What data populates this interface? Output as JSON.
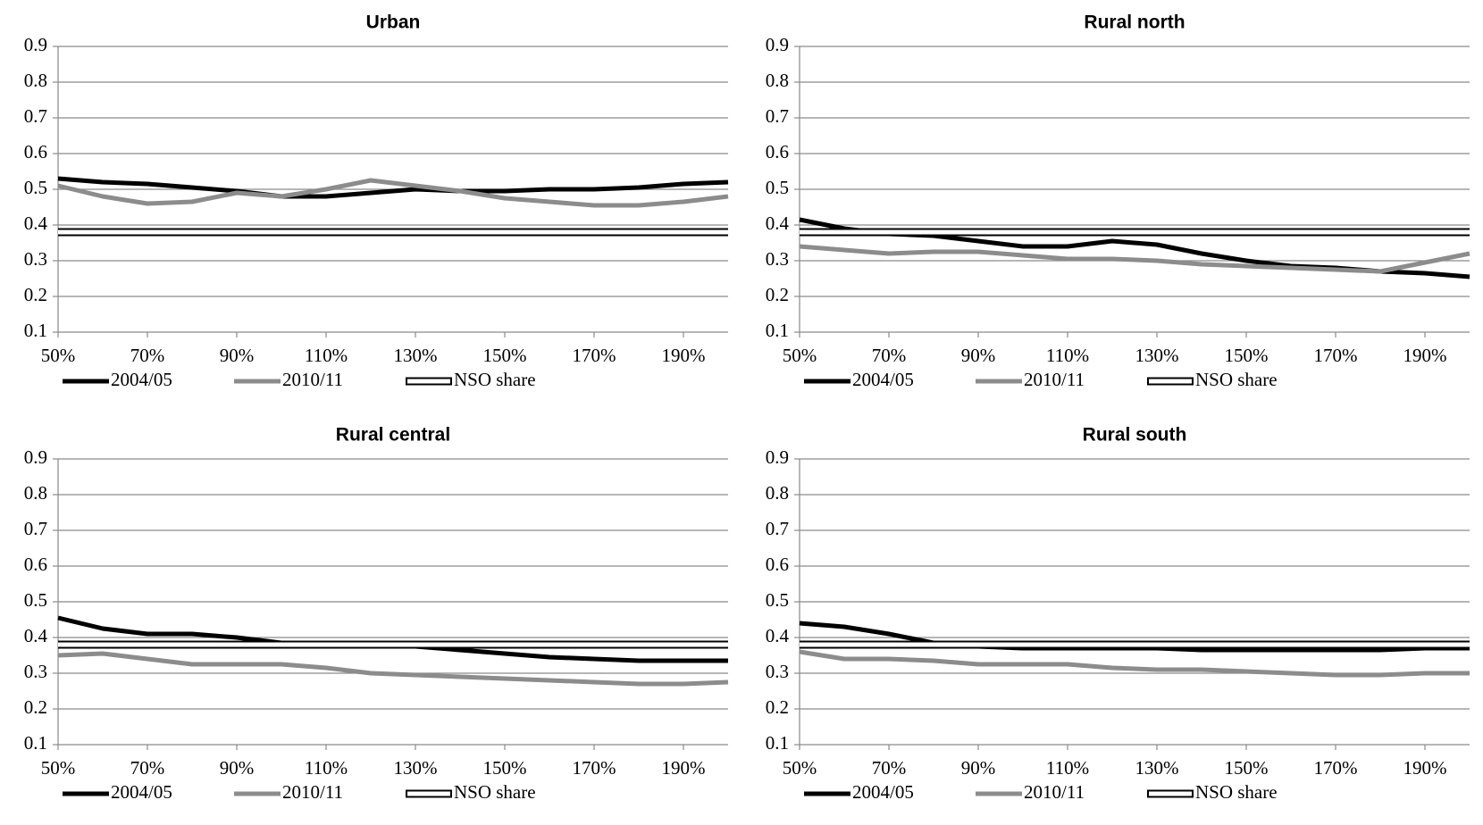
{
  "chart_data": [
    {
      "type": "line",
      "title": "Urban",
      "x": [
        50,
        60,
        70,
        80,
        90,
        100,
        110,
        120,
        130,
        140,
        150,
        160,
        170,
        180,
        190,
        200
      ],
      "series": [
        {
          "name": "2004/05",
          "color": "#000000",
          "values": [
            0.53,
            0.52,
            0.515,
            0.505,
            0.495,
            0.48,
            0.48,
            0.49,
            0.5,
            0.495,
            0.495,
            0.5,
            0.5,
            0.505,
            0.515,
            0.52
          ]
        },
        {
          "name": "2010/11",
          "color": "#8c8c8c",
          "values": [
            0.51,
            0.48,
            0.46,
            0.465,
            0.49,
            0.48,
            0.5,
            0.525,
            0.51,
            0.495,
            0.475,
            0.465,
            0.455,
            0.455,
            0.465,
            0.48
          ]
        },
        {
          "name": "NSO share",
          "color": "#000000",
          "style": "hollow",
          "values": [
            0.38,
            0.38,
            0.38,
            0.38,
            0.38,
            0.38,
            0.38,
            0.38,
            0.38,
            0.38,
            0.38,
            0.38,
            0.38,
            0.38,
            0.38,
            0.38
          ]
        }
      ],
      "xlim": [
        50,
        200
      ],
      "xticks": [
        {
          "value": 50,
          "label": "50%"
        },
        {
          "value": 70,
          "label": "70%"
        },
        {
          "value": 90,
          "label": "90%"
        },
        {
          "value": 110,
          "label": "110%"
        },
        {
          "value": 130,
          "label": "130%"
        },
        {
          "value": 150,
          "label": "150%"
        },
        {
          "value": 170,
          "label": "170%"
        },
        {
          "value": 190,
          "label": "190%"
        }
      ],
      "ylim": [
        0.1,
        0.9
      ],
      "yticks": [
        0.1,
        0.2,
        0.3,
        0.4,
        0.5,
        0.6,
        0.7,
        0.8,
        0.9
      ],
      "grid": true,
      "legend": "bottom"
    },
    {
      "type": "line",
      "title": "Rural north",
      "x": [
        50,
        60,
        70,
        80,
        90,
        100,
        110,
        120,
        130,
        140,
        150,
        160,
        170,
        180,
        190,
        200
      ],
      "series": [
        {
          "name": "2004/05",
          "color": "#000000",
          "values": [
            0.415,
            0.39,
            0.375,
            0.37,
            0.355,
            0.34,
            0.34,
            0.355,
            0.345,
            0.32,
            0.3,
            0.285,
            0.28,
            0.27,
            0.265,
            0.255
          ]
        },
        {
          "name": "2010/11",
          "color": "#8c8c8c",
          "values": [
            0.34,
            0.33,
            0.32,
            0.325,
            0.325,
            0.315,
            0.305,
            0.305,
            0.3,
            0.29,
            0.285,
            0.28,
            0.275,
            0.27,
            0.295,
            0.32
          ]
        },
        {
          "name": "NSO share",
          "color": "#000000",
          "style": "hollow",
          "values": [
            0.38,
            0.38,
            0.38,
            0.38,
            0.38,
            0.38,
            0.38,
            0.38,
            0.38,
            0.38,
            0.38,
            0.38,
            0.38,
            0.38,
            0.38,
            0.38
          ]
        }
      ],
      "xlim": [
        50,
        200
      ],
      "xticks": [
        {
          "value": 50,
          "label": "50%"
        },
        {
          "value": 70,
          "label": "70%"
        },
        {
          "value": 90,
          "label": "90%"
        },
        {
          "value": 110,
          "label": "110%"
        },
        {
          "value": 130,
          "label": "130%"
        },
        {
          "value": 150,
          "label": "150%"
        },
        {
          "value": 170,
          "label": "170%"
        },
        {
          "value": 190,
          "label": "190%"
        }
      ],
      "ylim": [
        0.1,
        0.9
      ],
      "yticks": [
        0.1,
        0.2,
        0.3,
        0.4,
        0.5,
        0.6,
        0.7,
        0.8,
        0.9
      ],
      "grid": true,
      "legend": "bottom"
    },
    {
      "type": "line",
      "title": "Rural central",
      "x": [
        50,
        60,
        70,
        80,
        90,
        100,
        110,
        120,
        130,
        140,
        150,
        160,
        170,
        180,
        190,
        200
      ],
      "series": [
        {
          "name": "2004/05",
          "color": "#000000",
          "values": [
            0.455,
            0.425,
            0.41,
            0.41,
            0.4,
            0.385,
            0.375,
            0.375,
            0.375,
            0.365,
            0.355,
            0.345,
            0.34,
            0.335,
            0.335,
            0.335
          ]
        },
        {
          "name": "2010/11",
          "color": "#8c8c8c",
          "values": [
            0.35,
            0.355,
            0.34,
            0.325,
            0.325,
            0.325,
            0.315,
            0.3,
            0.295,
            0.29,
            0.285,
            0.28,
            0.275,
            0.27,
            0.27,
            0.275
          ]
        },
        {
          "name": "NSO share",
          "color": "#000000",
          "style": "hollow",
          "values": [
            0.38,
            0.38,
            0.38,
            0.38,
            0.38,
            0.38,
            0.38,
            0.38,
            0.38,
            0.38,
            0.38,
            0.38,
            0.38,
            0.38,
            0.38,
            0.38
          ]
        }
      ],
      "xlim": [
        50,
        200
      ],
      "xticks": [
        {
          "value": 50,
          "label": "50%"
        },
        {
          "value": 70,
          "label": "70%"
        },
        {
          "value": 90,
          "label": "90%"
        },
        {
          "value": 110,
          "label": "110%"
        },
        {
          "value": 130,
          "label": "130%"
        },
        {
          "value": 150,
          "label": "150%"
        },
        {
          "value": 170,
          "label": "170%"
        },
        {
          "value": 190,
          "label": "190%"
        }
      ],
      "ylim": [
        0.1,
        0.9
      ],
      "yticks": [
        0.1,
        0.2,
        0.3,
        0.4,
        0.5,
        0.6,
        0.7,
        0.8,
        0.9
      ],
      "grid": true,
      "legend": "bottom"
    },
    {
      "type": "line",
      "title": "Rural south",
      "x": [
        50,
        60,
        70,
        80,
        90,
        100,
        110,
        120,
        130,
        140,
        150,
        160,
        170,
        180,
        190,
        200
      ],
      "series": [
        {
          "name": "2004/05",
          "color": "#000000",
          "values": [
            0.44,
            0.43,
            0.41,
            0.385,
            0.375,
            0.37,
            0.37,
            0.37,
            0.37,
            0.365,
            0.365,
            0.365,
            0.365,
            0.365,
            0.37,
            0.37
          ]
        },
        {
          "name": "2010/11",
          "color": "#8c8c8c",
          "values": [
            0.36,
            0.34,
            0.34,
            0.335,
            0.325,
            0.325,
            0.325,
            0.315,
            0.31,
            0.31,
            0.305,
            0.3,
            0.295,
            0.295,
            0.3,
            0.3
          ]
        },
        {
          "name": "NSO share",
          "color": "#000000",
          "style": "hollow",
          "values": [
            0.38,
            0.38,
            0.38,
            0.38,
            0.38,
            0.38,
            0.38,
            0.38,
            0.38,
            0.38,
            0.38,
            0.38,
            0.38,
            0.38,
            0.38,
            0.38
          ]
        }
      ],
      "xlim": [
        50,
        200
      ],
      "xticks": [
        {
          "value": 50,
          "label": "50%"
        },
        {
          "value": 70,
          "label": "70%"
        },
        {
          "value": 90,
          "label": "90%"
        },
        {
          "value": 110,
          "label": "110%"
        },
        {
          "value": 130,
          "label": "130%"
        },
        {
          "value": 150,
          "label": "150%"
        },
        {
          "value": 170,
          "label": "170%"
        },
        {
          "value": 190,
          "label": "190%"
        }
      ],
      "ylim": [
        0.1,
        0.9
      ],
      "yticks": [
        0.1,
        0.2,
        0.3,
        0.4,
        0.5,
        0.6,
        0.7,
        0.8,
        0.9
      ],
      "grid": true,
      "legend": "bottom"
    }
  ]
}
